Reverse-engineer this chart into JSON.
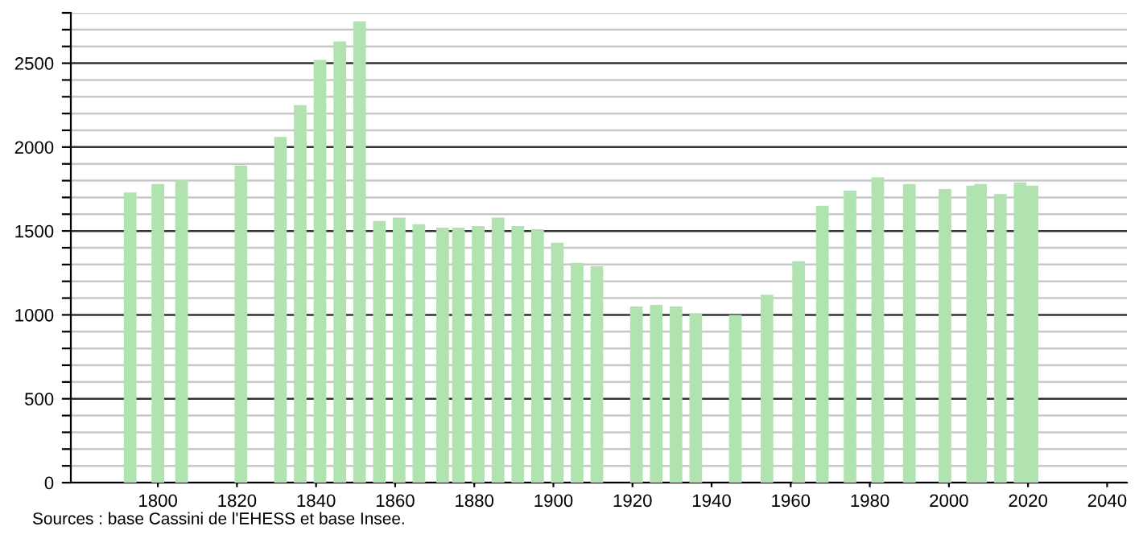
{
  "chart_data": {
    "type": "bar",
    "x": [
      1793,
      1800,
      1806,
      1821,
      1831,
      1836,
      1841,
      1846,
      1851,
      1856,
      1861,
      1866,
      1872,
      1876,
      1881,
      1886,
      1891,
      1896,
      1901,
      1906,
      1911,
      1921,
      1926,
      1931,
      1936,
      1946,
      1954,
      1962,
      1968,
      1975,
      1982,
      1990,
      1999,
      2006,
      2008,
      2013,
      2018,
      2021
    ],
    "values": [
      1730,
      1780,
      1800,
      1890,
      2060,
      2250,
      2520,
      2630,
      2750,
      1560,
      1580,
      1540,
      1520,
      1520,
      1530,
      1580,
      1530,
      1510,
      1430,
      1310,
      1290,
      1050,
      1060,
      1050,
      1010,
      1000,
      1120,
      1320,
      1650,
      1740,
      1820,
      1780,
      1750,
      1770,
      1780,
      1720,
      1790,
      1770
    ],
    "color": "#b0e3b0",
    "xlim": [
      1778,
      2045
    ],
    "xticks": [
      1800,
      1820,
      1840,
      1860,
      1880,
      1900,
      1920,
      1940,
      1960,
      1980,
      2000,
      2020,
      2040
    ],
    "ylim": [
      0,
      2800
    ],
    "yticks": [
      0,
      {
        "value": 100,
        "label": null
      },
      {
        "value": 200,
        "label": null
      },
      {
        "value": 300,
        "label": null
      },
      {
        "value": 400,
        "label": null
      },
      500,
      {
        "value": 600,
        "label": null
      },
      {
        "value": 700,
        "label": null
      },
      {
        "value": 800,
        "label": null
      },
      {
        "value": 900,
        "label": null
      },
      1000,
      {
        "value": 1100,
        "label": null
      },
      {
        "value": 1200,
        "label": null
      },
      {
        "value": 1300,
        "label": null
      },
      {
        "value": 1400,
        "label": null
      },
      1500,
      {
        "value": 1600,
        "label": null
      },
      {
        "value": 1700,
        "label": null
      },
      {
        "value": 1800,
        "label": null
      },
      {
        "value": 1900,
        "label": null
      },
      2000,
      {
        "value": 2100,
        "label": null
      },
      {
        "value": 2200,
        "label": null
      },
      {
        "value": 2300,
        "label": null
      },
      {
        "value": 2400,
        "label": null
      },
      2500,
      {
        "value": 2600,
        "label": null
      },
      {
        "value": 2700,
        "label": null
      },
      {
        "value": 2800,
        "label": null
      }
    ],
    "grid": "y",
    "annotations": [
      "Sources : base Cassini de l'EHESS et base Insee."
    ]
  }
}
